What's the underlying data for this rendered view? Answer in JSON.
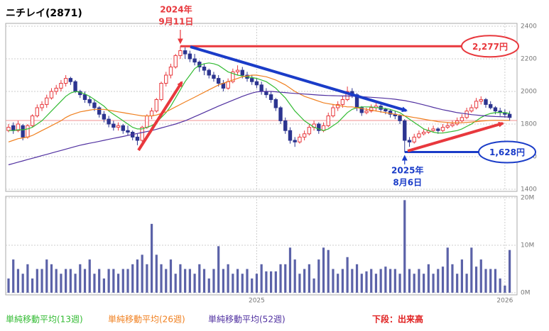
{
  "chart_data": {
    "type": "candlestick",
    "title": "ニチレイ(2871)",
    "categories": [
      null,
      null,
      null,
      null,
      null,
      null,
      null,
      null,
      null,
      null,
      null,
      null,
      null,
      null,
      null,
      null,
      null,
      null,
      null,
      null,
      null,
      null,
      null,
      null,
      null,
      null,
      null,
      null,
      null,
      null,
      null,
      null,
      null,
      null,
      null,
      null,
      null,
      null,
      null,
      null,
      null,
      null,
      null,
      null,
      null,
      null,
      null,
      null,
      null,
      null,
      null,
      null,
      "2025",
      null,
      null,
      null,
      null,
      null,
      null,
      null,
      null,
      null,
      null,
      null,
      null,
      null,
      null,
      null,
      null,
      null,
      null,
      null,
      null,
      null,
      null,
      null,
      null,
      null,
      null,
      null,
      null,
      null,
      null,
      null,
      null,
      null,
      null,
      null,
      null,
      null,
      null,
      null,
      null,
      null,
      null,
      null,
      null,
      null,
      null,
      null,
      null,
      null,
      null,
      null,
      "2026",
      null
    ],
    "candles": [
      [
        1760,
        1800,
        1750,
        1780
      ],
      [
        1790,
        1810,
        1740,
        1760
      ],
      [
        1760,
        1820,
        1750,
        1800
      ],
      [
        1790,
        1800,
        1700,
        1720
      ],
      [
        1720,
        1800,
        1710,
        1790
      ],
      [
        1790,
        1860,
        1780,
        1850
      ],
      [
        1850,
        1920,
        1840,
        1900
      ],
      [
        1900,
        1940,
        1880,
        1920
      ],
      [
        1920,
        1980,
        1900,
        1960
      ],
      [
        1960,
        2020,
        1950,
        2000
      ],
      [
        2000,
        2040,
        1980,
        2020
      ],
      [
        2020,
        2070,
        2000,
        2050
      ],
      [
        2050,
        2100,
        2030,
        2080
      ],
      [
        2080,
        2090,
        2040,
        2060
      ],
      [
        2060,
        2070,
        1990,
        2000
      ],
      [
        2000,
        2010,
        1960,
        1980
      ],
      [
        1980,
        2000,
        1930,
        1950
      ],
      [
        1950,
        1970,
        1910,
        1930
      ],
      [
        1930,
        1950,
        1880,
        1900
      ],
      [
        1900,
        1910,
        1840,
        1860
      ],
      [
        1860,
        1880,
        1810,
        1830
      ],
      [
        1830,
        1850,
        1780,
        1800
      ],
      [
        1800,
        1820,
        1760,
        1780
      ],
      [
        1780,
        1810,
        1760,
        1790
      ],
      [
        1790,
        1800,
        1740,
        1760
      ],
      [
        1760,
        1790,
        1730,
        1750
      ],
      [
        1750,
        1760,
        1700,
        1720
      ],
      [
        1720,
        1740,
        1670,
        1700
      ],
      [
        1700,
        1790,
        1690,
        1780
      ],
      [
        1780,
        1860,
        1770,
        1850
      ],
      [
        1850,
        1900,
        1830,
        1880
      ],
      [
        1880,
        1960,
        1870,
        1950
      ],
      [
        1950,
        2060,
        1940,
        2050
      ],
      [
        2050,
        2120,
        2030,
        2100
      ],
      [
        2100,
        2170,
        2080,
        2150
      ],
      [
        2150,
        2230,
        2140,
        2220
      ],
      [
        2220,
        2277,
        2200,
        2250
      ],
      [
        2250,
        2270,
        2200,
        2230
      ],
      [
        2230,
        2250,
        2180,
        2200
      ],
      [
        2200,
        2230,
        2160,
        2180
      ],
      [
        2180,
        2190,
        2120,
        2150
      ],
      [
        2150,
        2170,
        2100,
        2130
      ],
      [
        2130,
        2140,
        2080,
        2100
      ],
      [
        2100,
        2120,
        2060,
        2080
      ],
      [
        2080,
        2100,
        2030,
        2050
      ],
      [
        2050,
        2070,
        2000,
        2020
      ],
      [
        2020,
        2080,
        2010,
        2060
      ],
      [
        2060,
        2140,
        2050,
        2120
      ],
      [
        2120,
        2160,
        2100,
        2130
      ],
      [
        2130,
        2150,
        2080,
        2100
      ],
      [
        2100,
        2120,
        2060,
        2080
      ],
      [
        2080,
        2100,
        2040,
        2060
      ],
      [
        2060,
        2080,
        2020,
        2040
      ],
      [
        2040,
        2060,
        1980,
        2000
      ],
      [
        2000,
        2020,
        1960,
        1980
      ],
      [
        1980,
        2000,
        1930,
        1950
      ],
      [
        1950,
        1960,
        1880,
        1900
      ],
      [
        1900,
        1910,
        1800,
        1820
      ],
      [
        1820,
        1840,
        1740,
        1760
      ],
      [
        1760,
        1780,
        1680,
        1700
      ],
      [
        1700,
        1720,
        1660,
        1690
      ],
      [
        1690,
        1740,
        1680,
        1720
      ],
      [
        1720,
        1760,
        1700,
        1740
      ],
      [
        1740,
        1800,
        1730,
        1780
      ],
      [
        1780,
        1820,
        1760,
        1800
      ],
      [
        1800,
        1810,
        1740,
        1760
      ],
      [
        1760,
        1810,
        1750,
        1790
      ],
      [
        1790,
        1870,
        1780,
        1850
      ],
      [
        1850,
        1920,
        1840,
        1900
      ],
      [
        1900,
        1940,
        1880,
        1920
      ],
      [
        1920,
        1970,
        1900,
        1950
      ],
      [
        1950,
        2030,
        1940,
        2000
      ],
      [
        2000,
        2020,
        1960,
        1980
      ],
      [
        1980,
        1990,
        1880,
        1900
      ],
      [
        1900,
        1910,
        1850,
        1870
      ],
      [
        1870,
        1900,
        1860,
        1880
      ],
      [
        1880,
        1920,
        1870,
        1900
      ],
      [
        1900,
        1930,
        1880,
        1910
      ],
      [
        1910,
        1920,
        1870,
        1890
      ],
      [
        1890,
        1900,
        1860,
        1880
      ],
      [
        1880,
        1890,
        1840,
        1860
      ],
      [
        1860,
        1880,
        1830,
        1850
      ],
      [
        1850,
        1860,
        1800,
        1820
      ],
      [
        1820,
        1830,
        1628,
        1700
      ],
      [
        1700,
        1720,
        1660,
        1690
      ],
      [
        1690,
        1740,
        1680,
        1720
      ],
      [
        1720,
        1760,
        1710,
        1740
      ],
      [
        1740,
        1770,
        1730,
        1750
      ],
      [
        1750,
        1780,
        1740,
        1760
      ],
      [
        1760,
        1790,
        1750,
        1770
      ],
      [
        1770,
        1780,
        1740,
        1760
      ],
      [
        1760,
        1800,
        1750,
        1780
      ],
      [
        1780,
        1810,
        1770,
        1790
      ],
      [
        1790,
        1820,
        1780,
        1800
      ],
      [
        1800,
        1840,
        1790,
        1820
      ],
      [
        1820,
        1860,
        1810,
        1840
      ],
      [
        1840,
        1900,
        1830,
        1880
      ],
      [
        1880,
        1920,
        1870,
        1900
      ],
      [
        1900,
        1960,
        1890,
        1940
      ],
      [
        1940,
        1970,
        1920,
        1950
      ],
      [
        1950,
        1960,
        1900,
        1920
      ],
      [
        1920,
        1940,
        1890,
        1900
      ],
      [
        1900,
        1910,
        1860,
        1880
      ],
      [
        1880,
        1900,
        1850,
        1870
      ],
      [
        1870,
        1890,
        1840,
        1860
      ],
      [
        1860,
        1880,
        1820,
        1840
      ]
    ],
    "up_color": "#e8383d",
    "down_color": "#2c3590",
    "ylim": [
      1400,
      2400
    ],
    "yticks": [
      1400,
      1600,
      1800,
      2000,
      2200,
      2400
    ],
    "grid": true,
    "price_line": {
      "value": 1822,
      "color": "#f09090"
    },
    "moving_averages": [
      {
        "name": "単純移動平均(13週)",
        "color": "#33bb33",
        "values": [
          1760,
          1760,
          1765,
          1765,
          1770,
          1780,
          1800,
          1820,
          1850,
          1880,
          1910,
          1940,
          1970,
          1990,
          2000,
          1995,
          1985,
          1970,
          1950,
          1930,
          1910,
          1880,
          1860,
          1840,
          1820,
          1800,
          1780,
          1770,
          1770,
          1780,
          1790,
          1810,
          1840,
          1870,
          1910,
          1960,
          2010,
          2060,
          2100,
          2140,
          2160,
          2170,
          2175,
          2170,
          2160,
          2140,
          2120,
          2110,
          2100,
          2095,
          2090,
          2085,
          2080,
          2070,
          2060,
          2040,
          2020,
          1990,
          1960,
          1920,
          1880,
          1850,
          1820,
          1800,
          1780,
          1770,
          1760,
          1770,
          1790,
          1810,
          1840,
          1870,
          1890,
          1900,
          1905,
          1905,
          1905,
          1900,
          1900,
          1895,
          1890,
          1880,
          1870,
          1850,
          1830,
          1810,
          1790,
          1770,
          1760,
          1750,
          1745,
          1745,
          1750,
          1755,
          1760,
          1770,
          1785,
          1800,
          1820,
          1840,
          1855,
          1865,
          1870,
          1870,
          1870,
          1865
        ]
      },
      {
        "name": "単純移動平均(26週)",
        "color": "#f08020",
        "values": [
          1690,
          1700,
          1710,
          1715,
          1720,
          1730,
          1745,
          1760,
          1775,
          1790,
          1805,
          1820,
          1840,
          1855,
          1865,
          1875,
          1880,
          1885,
          1890,
          1890,
          1890,
          1885,
          1880,
          1875,
          1870,
          1865,
          1860,
          1855,
          1850,
          1850,
          1850,
          1855,
          1865,
          1875,
          1890,
          1905,
          1920,
          1935,
          1950,
          1965,
          1980,
          1995,
          2010,
          2025,
          2040,
          2050,
          2060,
          2070,
          2080,
          2090,
          2095,
          2100,
          2100,
          2095,
          2090,
          2080,
          2070,
          2055,
          2040,
          2020,
          2000,
          1985,
          1970,
          1960,
          1950,
          1940,
          1930,
          1925,
          1920,
          1915,
          1910,
          1905,
          1905,
          1900,
          1895,
          1890,
          1885,
          1880,
          1875,
          1870,
          1865,
          1860,
          1855,
          1850,
          1845,
          1840,
          1835,
          1830,
          1825,
          1820,
          1815,
          1812,
          1810,
          1808,
          1808,
          1808,
          1810,
          1812,
          1815,
          1818,
          1820,
          1822,
          1823,
          1823,
          1823,
          1822
        ]
      },
      {
        "name": "単純移動平均(52週)",
        "color": "#5030a0",
        "values": [
          1550,
          1558,
          1566,
          1574,
          1582,
          1590,
          1598,
          1606,
          1614,
          1622,
          1630,
          1638,
          1646,
          1654,
          1662,
          1670,
          1676,
          1682,
          1688,
          1694,
          1700,
          1706,
          1712,
          1718,
          1724,
          1730,
          1736,
          1742,
          1748,
          1754,
          1760,
          1768,
          1776,
          1784,
          1792,
          1800,
          1810,
          1820,
          1832,
          1845,
          1858,
          1871,
          1884,
          1897,
          1910,
          1922,
          1934,
          1946,
          1958,
          1970,
          1980,
          1990,
          1997,
          2000,
          2000,
          2000,
          1998,
          1995,
          1993,
          1990,
          1988,
          1986,
          1984,
          1982,
          1980,
          1978,
          1976,
          1975,
          1974,
          1973,
          1972,
          1972,
          1971,
          1970,
          1968,
          1966,
          1964,
          1962,
          1960,
          1958,
          1955,
          1952,
          1948,
          1944,
          1938,
          1932,
          1925,
          1918,
          1910,
          1902,
          1895,
          1888,
          1882,
          1876,
          1870,
          1866,
          1862,
          1858,
          1855,
          1852,
          1850,
          1848,
          1846,
          1845,
          1844,
          1843
        ]
      }
    ],
    "volume": {
      "name": "下段：出来高",
      "color": "#5b62a8",
      "values": [
        3,
        7,
        5,
        4,
        6,
        3,
        5,
        5,
        7,
        6,
        5,
        4,
        5,
        5,
        4,
        6,
        5,
        7,
        4,
        5,
        3,
        5,
        5,
        4,
        5,
        5,
        6,
        7,
        8,
        6,
        14.5,
        8,
        6,
        5,
        7,
        4,
        6,
        5,
        5,
        4,
        6,
        5,
        3,
        5,
        9.8,
        5,
        6,
        4,
        5,
        4,
        5,
        3,
        4,
        6,
        4.5,
        4.5,
        4.5,
        6,
        6,
        9.5,
        7,
        4,
        5,
        6,
        3,
        7,
        9.5,
        9,
        5,
        4,
        5,
        7.5,
        5,
        6,
        4,
        4.5,
        5,
        4,
        5,
        5.5,
        5,
        5,
        4,
        19.5,
        5,
        4,
        5,
        4,
        6,
        4,
        5,
        5.5,
        9.5,
        6,
        4,
        7,
        4,
        9.5,
        5.5,
        7,
        5,
        5,
        5,
        3,
        1.5,
        9
      ],
      "ylim": [
        0,
        20
      ],
      "yticks": [
        {
          "value": 0,
          "label": "0M"
        },
        {
          "value": 10,
          "label": "10M"
        },
        {
          "value": 20,
          "label": "20M"
        }
      ]
    },
    "annotations": [
      {
        "lines": [
          "2024年",
          "9月11日"
        ],
        "price": 2277,
        "price_label": "2,277円",
        "color": "#e8383d"
      },
      {
        "lines": [
          "2025年",
          "8月6日"
        ],
        "price": 1628,
        "price_label": "1,628円",
        "color": "#1a3cc8"
      }
    ]
  }
}
